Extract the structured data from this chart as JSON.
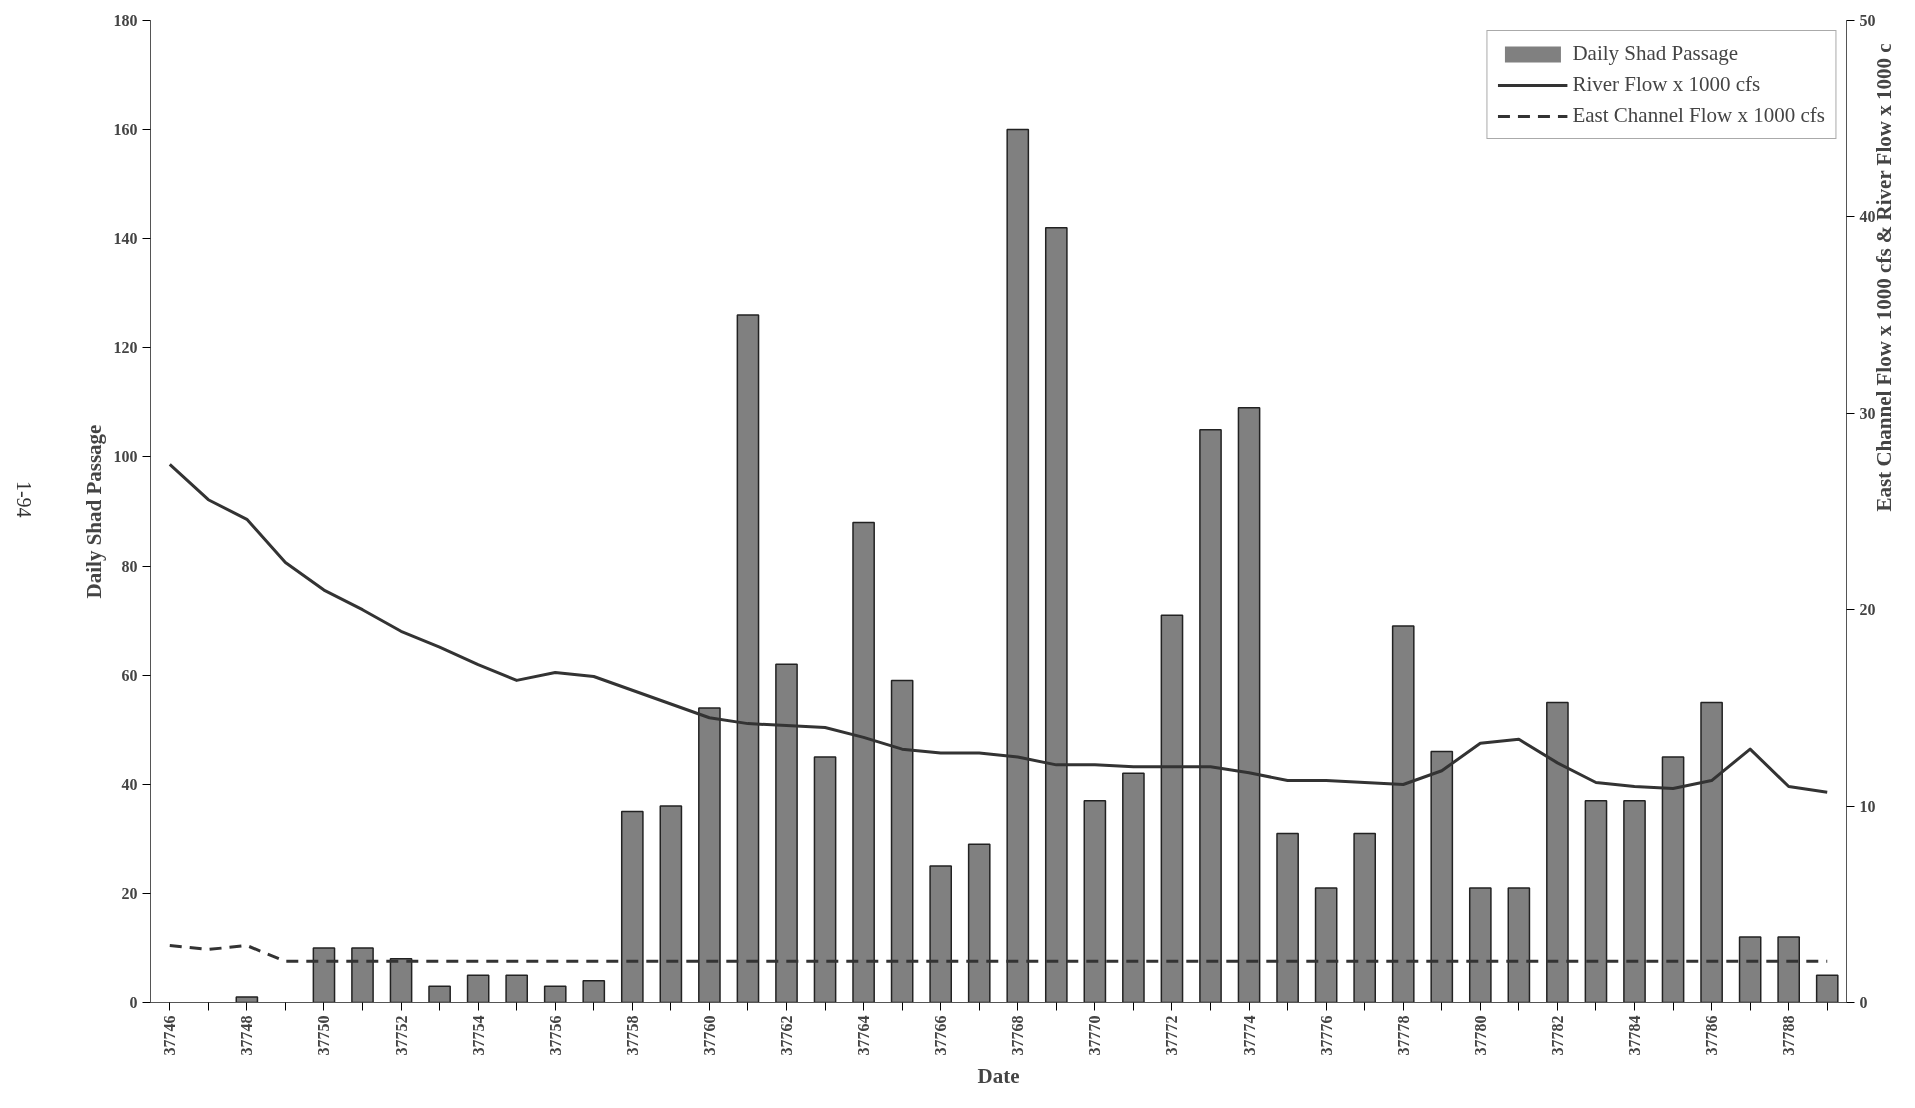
{
  "chart_data": {
    "type": "bar",
    "xlabel": "Date",
    "ylabel": "Daily Shad Passage",
    "y2label": "East Channel Flow x 1000 cfs & River Flow x 1000 c",
    "annotations": [
      "1-94"
    ],
    "x": [
      37746,
      37747,
      37748,
      37749,
      37750,
      37751,
      37752,
      37753,
      37754,
      37755,
      37756,
      37757,
      37758,
      37759,
      37760,
      37761,
      37762,
      37763,
      37764,
      37765,
      37766,
      37767,
      37768,
      37769,
      37770,
      37771,
      37772,
      37773,
      37774,
      37775,
      37776,
      37777,
      37778,
      37779,
      37780,
      37781,
      37782,
      37783,
      37784,
      37785,
      37786,
      37787,
      37788,
      37789
    ],
    "series": [
      {
        "name": "Daily Shad Passage",
        "color": "#808080",
        "values": [
          0,
          0,
          1,
          0,
          10,
          10,
          8,
          3,
          5,
          5,
          3,
          4,
          35,
          36,
          54,
          126,
          62,
          45,
          88,
          59,
          25,
          29,
          160,
          142,
          37,
          42,
          71,
          105,
          109,
          31,
          21,
          31,
          69,
          46,
          21,
          21,
          55,
          37,
          37,
          45,
          55,
          12,
          12,
          5
        ]
      },
      {
        "name": "River Flow x 1000 cfs",
        "type": "line",
        "axis": "y2",
        "color": "#333333",
        "line_style": "solid",
        "values": [
          27.4,
          25.6,
          24.6,
          22.4,
          21.0,
          20.0,
          18.9,
          18.1,
          17.2,
          16.4,
          16.8,
          16.6,
          15.9,
          15.2,
          14.5,
          14.2,
          14.1,
          14.0,
          13.5,
          12.9,
          12.7,
          12.7,
          12.5,
          12.1,
          12.1,
          12.0,
          12.0,
          12.0,
          11.7,
          11.3,
          11.3,
          11.2,
          11.1,
          11.8,
          13.2,
          13.4,
          12.2,
          11.2,
          11.0,
          10.9,
          11.3,
          12.9,
          11.0,
          10.7
        ]
      },
      {
        "name": "East Channel Flow x 1000 cfs",
        "type": "line",
        "axis": "y2",
        "color": "#333333",
        "line_style": "dashed",
        "values": [
          2.9,
          2.7,
          2.9,
          2.1,
          2.1,
          2.1,
          2.1,
          2.1,
          2.1,
          2.1,
          2.1,
          2.1,
          2.1,
          2.1,
          2.1,
          2.1,
          2.1,
          2.1,
          2.1,
          2.1,
          2.1,
          2.1,
          2.1,
          2.1,
          2.1,
          2.1,
          2.1,
          2.1,
          2.1,
          2.1,
          2.1,
          2.1,
          2.1,
          2.1,
          2.1,
          2.1,
          2.1,
          2.1,
          2.1,
          2.1,
          2.1,
          2.1,
          2.1,
          2.1
        ]
      }
    ],
    "xlim": [
      37745.5,
      37789.5
    ],
    "xticks": [
      37746,
      {
        "value": 37747,
        "label": null
      },
      37748,
      {
        "value": 37749,
        "label": null
      },
      37750,
      {
        "value": 37751,
        "label": null
      },
      37752,
      {
        "value": 37753,
        "label": null
      },
      37754,
      {
        "value": 37755,
        "label": null
      },
      37756,
      {
        "value": 37757,
        "label": null
      },
      37758,
      {
        "value": 37759,
        "label": null
      },
      37760,
      {
        "value": 37761,
        "label": null
      },
      37762,
      {
        "value": 37763,
        "label": null
      },
      37764,
      {
        "value": 37765,
        "label": null
      },
      37766,
      {
        "value": 37767,
        "label": null
      },
      37768,
      {
        "value": 37769,
        "label": null
      },
      37770,
      {
        "value": 37771,
        "label": null
      },
      37772,
      {
        "value": 37773,
        "label": null
      },
      37774,
      {
        "value": 37775,
        "label": null
      },
      37776,
      {
        "value": 37777,
        "label": null
      },
      37778,
      {
        "value": 37779,
        "label": null
      },
      37780,
      {
        "value": 37781,
        "label": null
      },
      37782,
      {
        "value": 37783,
        "label": null
      },
      37784,
      {
        "value": 37785,
        "label": null
      },
      37786,
      {
        "value": 37787,
        "label": null
      },
      37788,
      {
        "value": 37789,
        "label": null
      }
    ],
    "ylim": [
      0,
      180
    ],
    "yticks": [
      0,
      20,
      40,
      60,
      80,
      100,
      120,
      140,
      160,
      180
    ],
    "y2lim": [
      0,
      50
    ],
    "y2ticks": [
      0,
      10,
      20,
      30,
      40,
      50
    ],
    "grid": false,
    "legend": "top right"
  }
}
